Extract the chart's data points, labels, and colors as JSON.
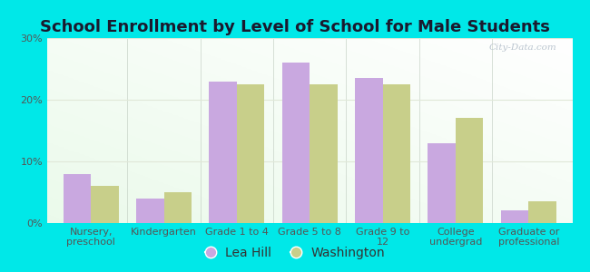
{
  "title": "School Enrollment by Level of School for Male Students",
  "categories": [
    "Nursery,\npreschool",
    "Kindergarten",
    "Grade 1 to 4",
    "Grade 5 to 8",
    "Grade 9 to\n12",
    "College\nundergrad",
    "Graduate or\nprofessional"
  ],
  "lea_hill": [
    8.0,
    4.0,
    23.0,
    26.0,
    23.5,
    13.0,
    2.0
  ],
  "washington": [
    6.0,
    5.0,
    22.5,
    22.5,
    22.5,
    17.0,
    3.5
  ],
  "lea_hill_color": "#c9a8e0",
  "washington_color": "#c8cf8a",
  "background_outer": "#00e8e8",
  "ylim": [
    0,
    30
  ],
  "yticks": [
    0,
    10,
    20,
    30
  ],
  "ytick_labels": [
    "0%",
    "10%",
    "20%",
    "30%"
  ],
  "legend_lea_hill": "Lea Hill",
  "legend_washington": "Washington",
  "bar_width": 0.38,
  "title_fontsize": 13,
  "tick_fontsize": 8,
  "legend_fontsize": 10,
  "watermark_text": "City-Data.com",
  "watermark_color": "#b0bcc8",
  "grid_color": "#e0e8d8",
  "tick_color": "#555555"
}
